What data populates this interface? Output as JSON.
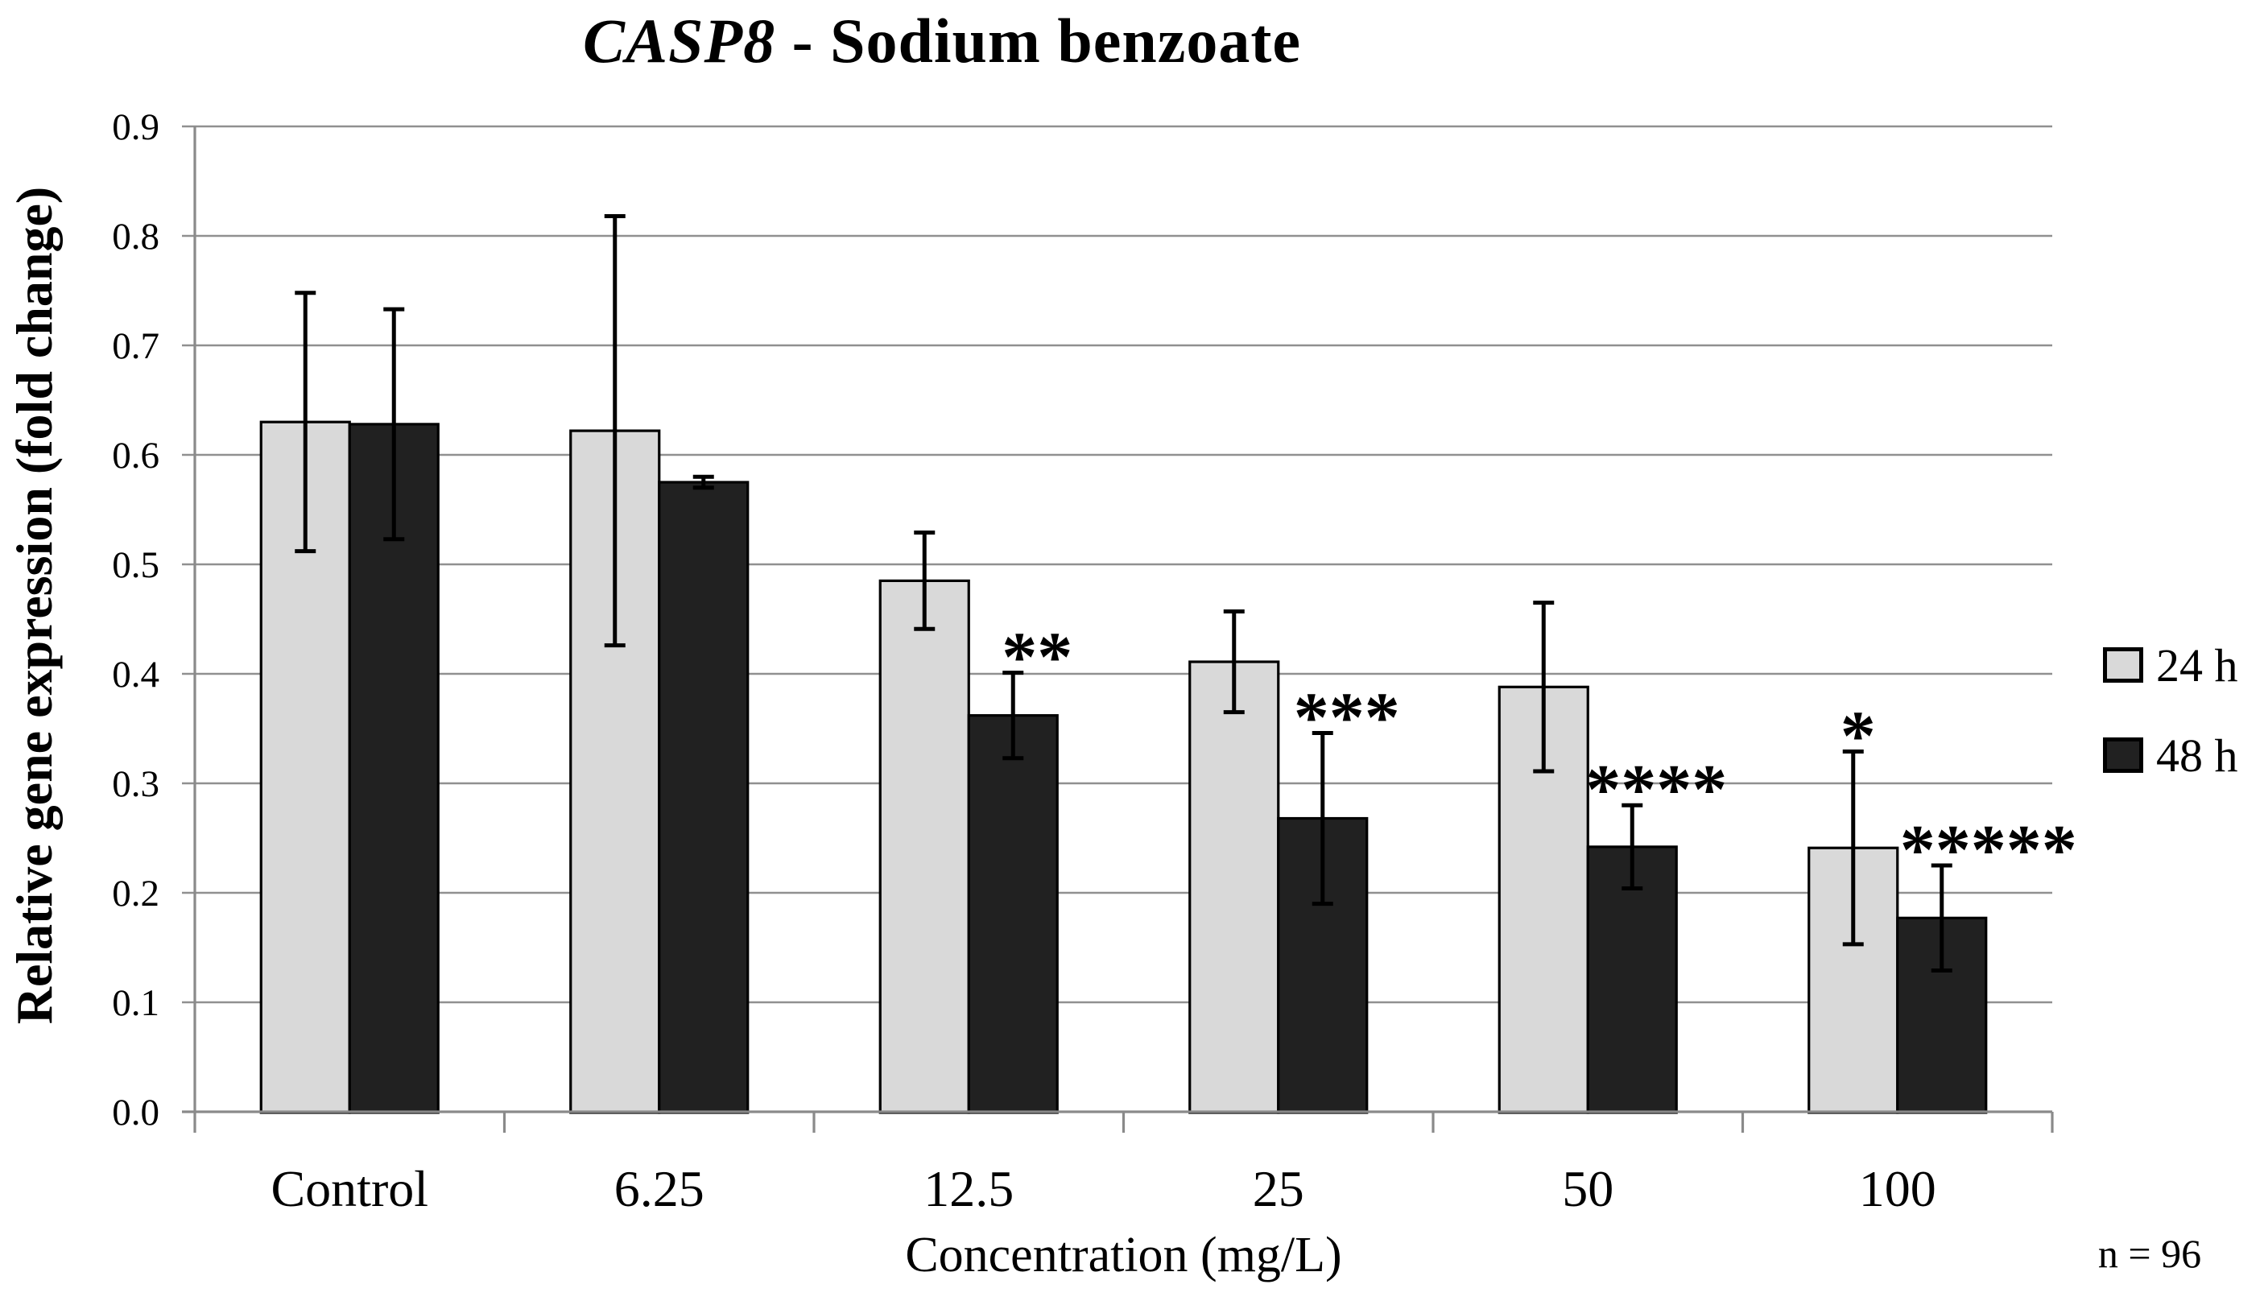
{
  "chart_data": {
    "type": "bar",
    "title": "CASP8 - Sodium benzoate",
    "title_italic": "CASP8",
    "title_rest": " - Sodium benzoate",
    "xlabel": "Concentration (mg/L)",
    "ylabel": "Relative gene expression (fold change)",
    "footnote": "n = 96",
    "ylim": [
      0,
      0.9
    ],
    "ytick_step": 0.1,
    "ytick_labels": [
      "0.0",
      "0.1",
      "0.2",
      "0.3",
      "0.4",
      "0.5",
      "0.6",
      "0.7",
      "0.8",
      "0.9"
    ],
    "grid": true,
    "legend_position": "right",
    "categories": [
      "Control",
      "6.25",
      "12.5",
      "25",
      "50",
      "100"
    ],
    "series": [
      {
        "name": "24 h",
        "color": "#d9d9d9",
        "values": [
          0.63,
          0.622,
          0.485,
          0.411,
          0.388,
          0.241
        ],
        "errors": [
          0.118,
          0.196,
          0.044,
          0.046,
          0.077,
          0.088
        ]
      },
      {
        "name": "48 h",
        "color": "#212121",
        "values": [
          0.628,
          0.575,
          0.362,
          0.268,
          0.242,
          0.177
        ],
        "errors": [
          0.105,
          0.005,
          0.039,
          0.078,
          0.038,
          0.048
        ]
      }
    ],
    "annotations": [
      {
        "category_index": 2,
        "series_index": 1,
        "text": "**"
      },
      {
        "category_index": 3,
        "series_index": 1,
        "text": "***"
      },
      {
        "category_index": 4,
        "series_index": 1,
        "text": "****"
      },
      {
        "category_index": 5,
        "series_index": 0,
        "text": "*"
      },
      {
        "category_index": 5,
        "series_index": 1,
        "text": "*****"
      }
    ],
    "colors": {
      "gridline": "#909090",
      "axis": "#8a8a8a",
      "bar_border": "#000000",
      "error_bar": "#000000",
      "text": "#000000"
    }
  }
}
